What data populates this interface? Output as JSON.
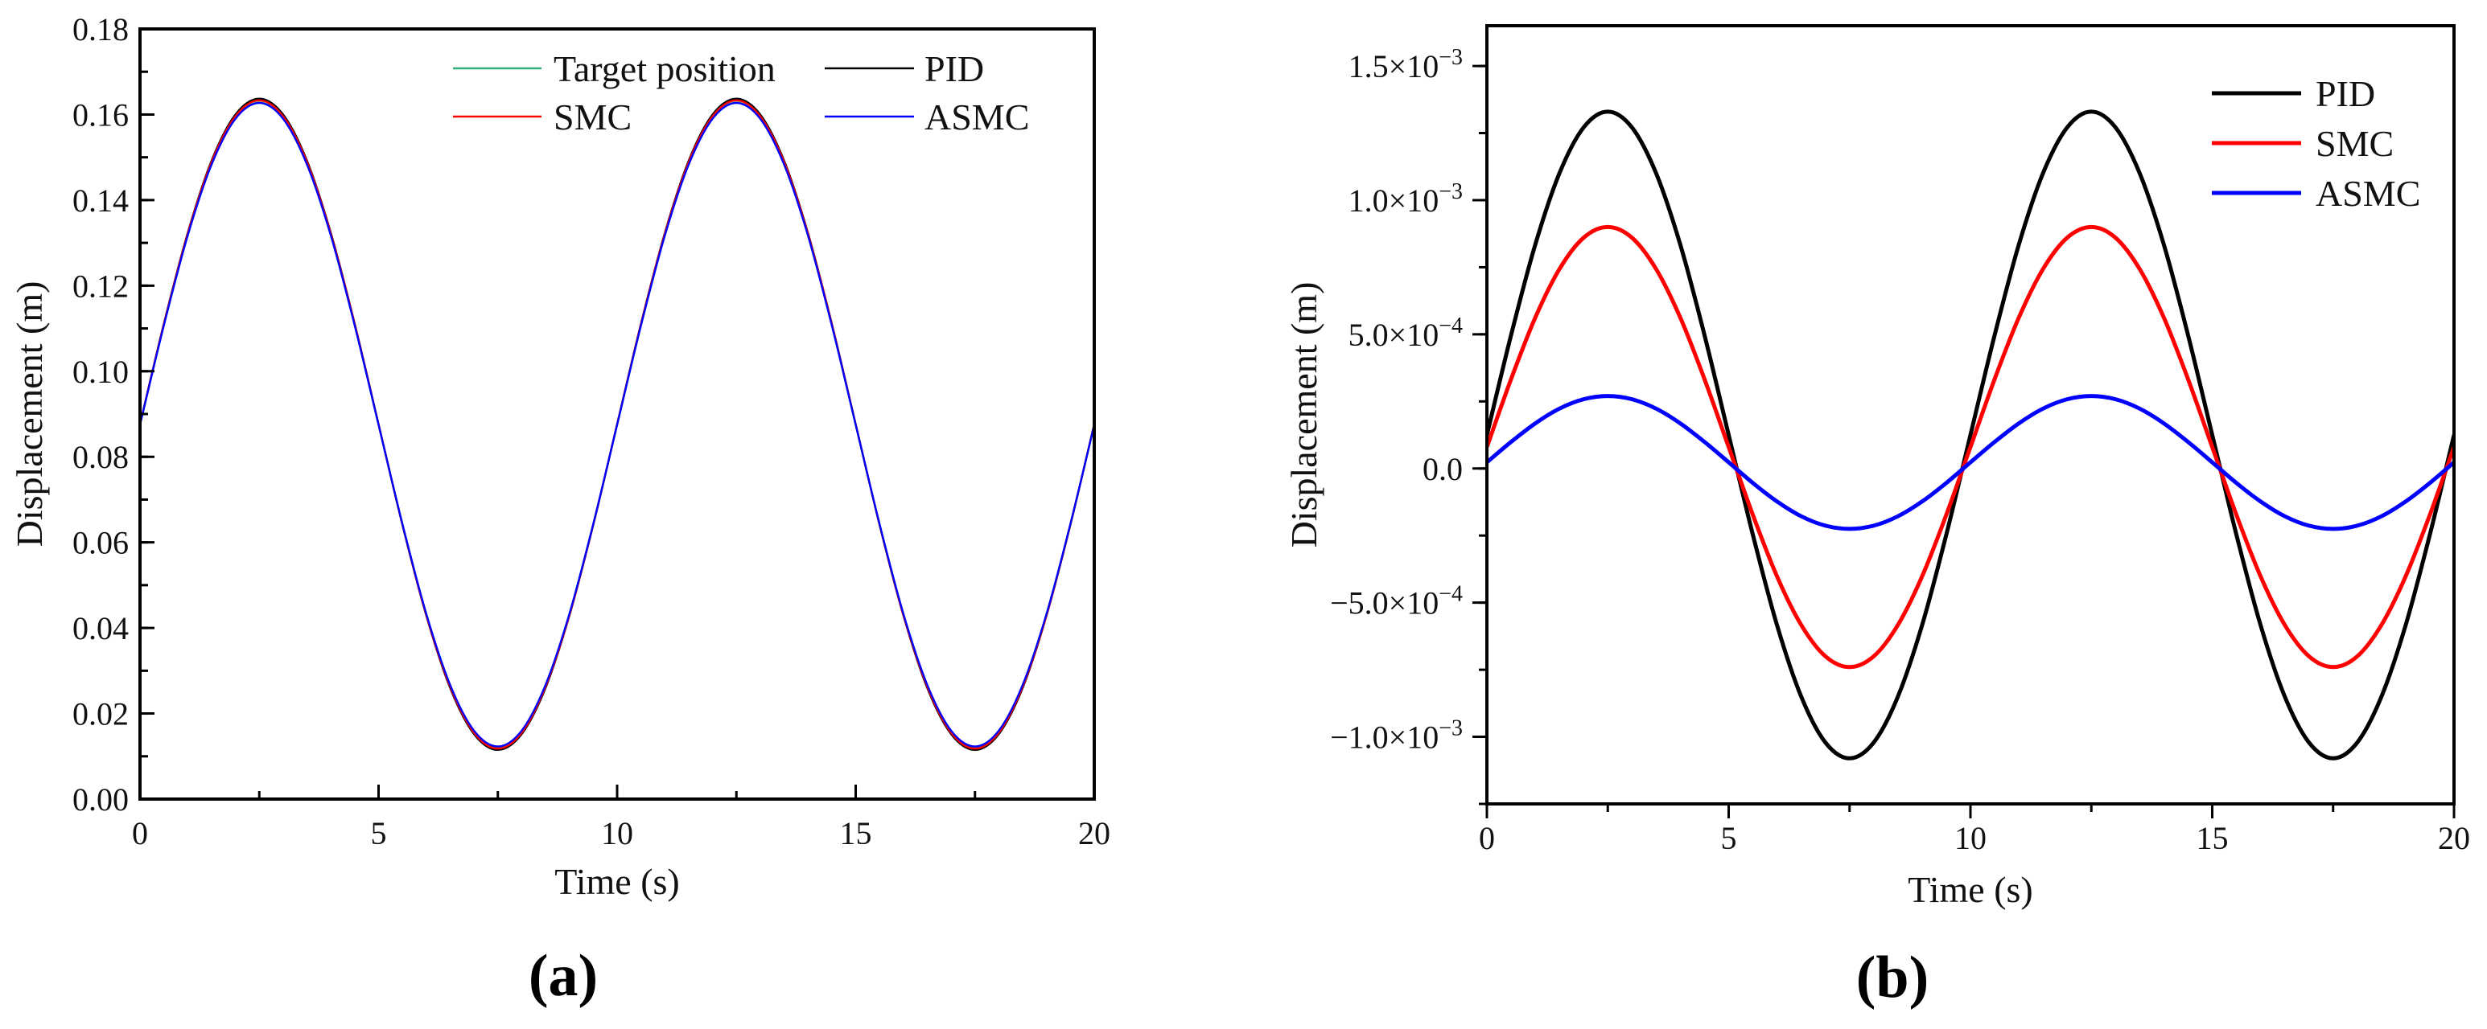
{
  "chart_data": [
    {
      "type": "line",
      "panel_label": "(a)",
      "panel_letter": "a",
      "xlabel": "Time (s)",
      "ylabel": "Displacement (m)",
      "xlim": [
        0,
        20
      ],
      "ylim": [
        0,
        0.18
      ],
      "xticks": [
        0,
        5,
        10,
        15,
        20
      ],
      "xtick_labels": [
        "0",
        "5",
        "10",
        "15",
        "20"
      ],
      "yticks": [
        0,
        0.02,
        0.04,
        0.06,
        0.08,
        0.1,
        0.12,
        0.14,
        0.16,
        0.18
      ],
      "ytick_labels": [
        "0.00",
        "0.02",
        "0.04",
        "0.06",
        "0.08",
        "0.10",
        "0.12",
        "0.14",
        "0.16",
        "0.18"
      ],
      "grid": false,
      "legend_position": "top-right",
      "x_step": 0.5,
      "x_start": 0,
      "series": [
        {
          "name": "Target position",
          "color": "#33b07a",
          "values": [
            0.0875,
            0.1108,
            0.1318,
            0.1484,
            0.1591,
            0.1628,
            0.1591,
            0.1484,
            0.1318,
            0.1108,
            0.0875,
            0.0642,
            0.0432,
            0.0266,
            0.0159,
            0.0122,
            0.0159,
            0.0266,
            0.0432,
            0.0642,
            0.0875,
            0.1108,
            0.1318,
            0.1484,
            0.1591,
            0.1628,
            0.1591,
            0.1484,
            0.1318,
            0.1108,
            0.0875,
            0.0642,
            0.0432,
            0.0266,
            0.0159,
            0.0122,
            0.0159,
            0.0266,
            0.0432,
            0.0642,
            0.0875
          ]
        },
        {
          "name": "PID",
          "color": "#000000",
          "values": [
            0.0876,
            0.1111,
            0.1323,
            0.1492,
            0.16,
            0.1637,
            0.16,
            0.1492,
            0.1323,
            0.1111,
            0.0876,
            0.0641,
            0.0429,
            0.026,
            0.0152,
            0.0115,
            0.0152,
            0.026,
            0.0429,
            0.0641,
            0.0876,
            0.1111,
            0.1323,
            0.1492,
            0.16,
            0.1637,
            0.16,
            0.1492,
            0.1323,
            0.1111,
            0.0876,
            0.0641,
            0.0429,
            0.026,
            0.0152,
            0.0115,
            0.0152,
            0.026,
            0.0429,
            0.0641,
            0.0876
          ]
        },
        {
          "name": "SMC",
          "color": "#ff0000",
          "values": [
            0.0876,
            0.111,
            0.1321,
            0.1489,
            0.1596,
            0.1633,
            0.1596,
            0.1489,
            0.1321,
            0.111,
            0.0876,
            0.0642,
            0.043,
            0.0263,
            0.0155,
            0.0118,
            0.0155,
            0.0263,
            0.043,
            0.0642,
            0.0876,
            0.111,
            0.1321,
            0.1489,
            0.1596,
            0.1633,
            0.1596,
            0.1489,
            0.1321,
            0.111,
            0.0876,
            0.0642,
            0.043,
            0.0263,
            0.0155,
            0.0118,
            0.0155,
            0.0263,
            0.043,
            0.0642,
            0.0876
          ]
        },
        {
          "name": "ASMC",
          "color": "#0000ff",
          "values": [
            0.0875,
            0.1107,
            0.1317,
            0.1483,
            0.159,
            0.1627,
            0.159,
            0.1483,
            0.1317,
            0.1107,
            0.0875,
            0.0643,
            0.0433,
            0.0267,
            0.016,
            0.0123,
            0.016,
            0.0267,
            0.0433,
            0.0643,
            0.0875,
            0.1107,
            0.1317,
            0.1483,
            0.159,
            0.1627,
            0.159,
            0.1483,
            0.1317,
            0.1107,
            0.0875,
            0.0643,
            0.0433,
            0.0267,
            0.016,
            0.0123,
            0.016,
            0.0267,
            0.0433,
            0.0643,
            0.0875
          ]
        }
      ]
    },
    {
      "type": "line",
      "panel_label": "(b)",
      "panel_letter": "b",
      "xlabel": "Time (s)",
      "ylabel": "Displacement (m)",
      "xlim": [
        0,
        20
      ],
      "ylim": [
        -0.00125,
        0.00165
      ],
      "xticks": [
        0,
        5,
        10,
        15,
        20
      ],
      "xtick_labels": [
        "0",
        "5",
        "10",
        "15",
        "20"
      ],
      "yticks": [
        -0.001,
        -0.0005,
        0,
        0.0005,
        0.001,
        0.0015
      ],
      "ytick_labels": [
        {
          "mantissa": "−1.0×10",
          "exponent": "−3"
        },
        {
          "mantissa": "−5.0×10",
          "exponent": "−4"
        },
        {
          "mantissa": "0.0",
          "exponent": ""
        },
        {
          "mantissa": "5.0×10",
          "exponent": "−4"
        },
        {
          "mantissa": "1.0×10",
          "exponent": "−3"
        },
        {
          "mantissa": "1.5×10",
          "exponent": "−3"
        }
      ],
      "grid": false,
      "legend_position": "top-right",
      "x_step": 0.5,
      "x_start": 0,
      "series": [
        {
          "name": "PID",
          "color": "#000000",
          "values": [
            0.000125,
            0.000497,
            0.000834,
            0.0011,
            0.001271,
            0.00133,
            0.001271,
            0.0011,
            0.000834,
            0.000497,
            0.000125,
            -0.000247,
            -0.000584,
            -0.00085,
            -0.001021,
            -0.00108,
            -0.001021,
            -0.00085,
            -0.000584,
            -0.000247,
            0.000125,
            0.000497,
            0.000834,
            0.0011,
            0.001271,
            0.00133,
            0.001271,
            0.0011,
            0.000834,
            0.000497,
            0.000125,
            -0.000247,
            -0.000584,
            -0.00085,
            -0.001021,
            -0.00108,
            -0.001021,
            -0.00085,
            -0.000584,
            -0.000247,
            0.000125
          ]
        },
        {
          "name": "SMC",
          "color": "#ff0000",
          "values": [
            8e-05,
            0.000333,
            0.000562,
            0.000743,
            0.00086,
            0.0009,
            0.00086,
            0.000743,
            0.000562,
            0.000333,
            8e-05,
            -0.000173,
            -0.000402,
            -0.000583,
            -0.0007,
            -0.00074,
            -0.0007,
            -0.000583,
            -0.000402,
            -0.000173,
            8e-05,
            0.000333,
            0.000562,
            0.000743,
            0.00086,
            0.0009,
            0.00086,
            0.000743,
            0.000562,
            0.000333,
            8e-05,
            -0.000173,
            -0.000402,
            -0.000583,
            -0.0007,
            -0.00074,
            -0.0007,
            -0.000583,
            -0.000402,
            -0.000173,
            8e-05
          ]
        },
        {
          "name": "ASMC",
          "color": "#0000ff",
          "values": [
            2.3e-05,
            9.9e-05,
            0.000168,
            0.000223,
            0.000258,
            0.00027,
            0.000258,
            0.000223,
            0.000168,
            9.9e-05,
            2.3e-05,
            -5.4e-05,
            -0.000123,
            -0.000178,
            -0.000213,
            -0.000225,
            -0.000213,
            -0.000178,
            -0.000123,
            -5.4e-05,
            2.3e-05,
            9.9e-05,
            0.000168,
            0.000223,
            0.000258,
            0.00027,
            0.000258,
            0.000223,
            0.000168,
            9.9e-05,
            2.3e-05,
            -5.4e-05,
            -0.000123,
            -0.000178,
            -0.000213,
            -0.000225,
            -0.000213,
            -0.000178,
            -0.000123,
            -5.4e-05,
            2.3e-05
          ]
        }
      ]
    }
  ]
}
